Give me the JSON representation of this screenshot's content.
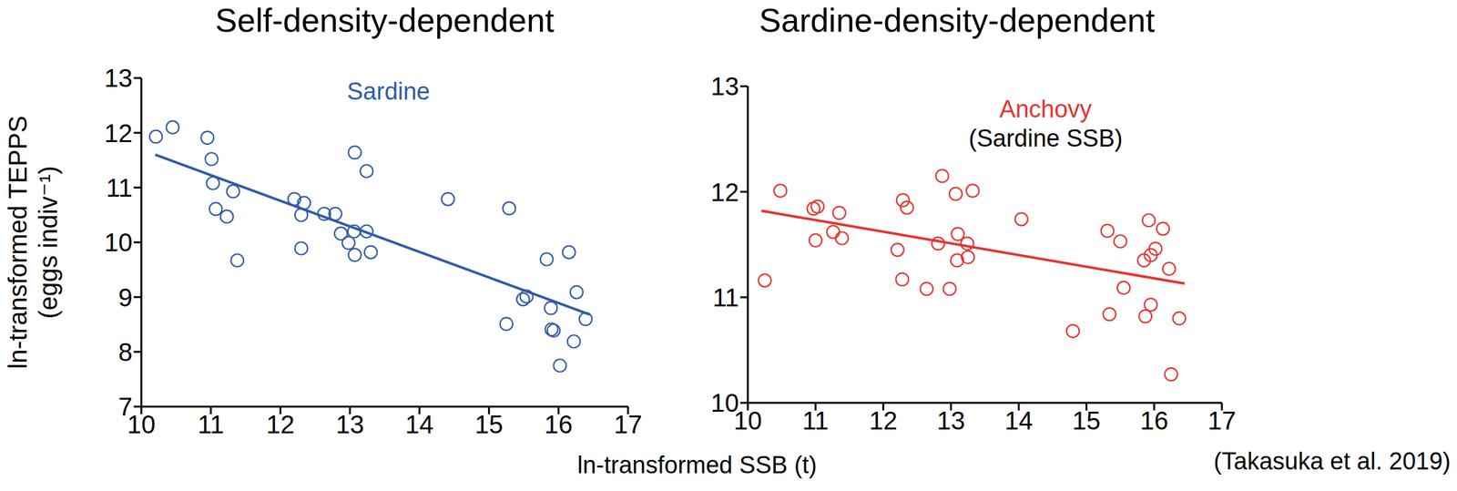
{
  "xlabel": "ln-transformed SSB (t)",
  "ylabel": "ln-transformed TEPPS (eggs indiv⁻¹)",
  "source": "(Takasuka et al. 2019)",
  "chart_data": [
    {
      "type": "scatter",
      "title": "Self-density-dependent",
      "xlim": [
        10,
        17
      ],
      "xticks": [
        10,
        11,
        12,
        13,
        14,
        15,
        16,
        17
      ],
      "ylim": [
        7,
        13
      ],
      "yticks": [
        7,
        8,
        9,
        10,
        11,
        12,
        13
      ],
      "grid": false,
      "series": [
        {
          "name": "Sardine",
          "color": "#2f5ba8",
          "marker": "open_circle",
          "x": [
            10.21,
            10.45,
            10.95,
            11.01,
            11.03,
            11.07,
            11.32,
            11.23,
            11.38,
            12.2,
            12.34,
            12.3,
            12.3,
            12.63,
            12.79,
            12.87,
            12.98,
            13.07,
            13.06,
            13.07,
            13.24,
            13.24,
            13.3,
            14.41,
            15.29,
            15.25,
            15.49,
            15.54,
            15.83,
            15.89,
            15.9,
            15.93,
            16.15,
            16.02,
            16.26,
            16.22,
            16.39
          ],
          "values": [
            11.93,
            12.1,
            11.91,
            11.52,
            11.08,
            10.61,
            10.93,
            10.47,
            9.67,
            10.79,
            10.72,
            10.5,
            9.89,
            10.52,
            10.52,
            10.16,
            9.99,
            11.64,
            10.2,
            9.77,
            11.3,
            10.2,
            9.82,
            10.79,
            10.62,
            8.51,
            8.96,
            9.01,
            9.69,
            8.8,
            8.41,
            8.39,
            9.82,
            7.75,
            9.09,
            8.19,
            8.6
          ]
        },
        {
          "type": "line",
          "color": "#2f5ba8",
          "x": [
            10.2,
            16.45
          ],
          "values": [
            11.6,
            8.68
          ]
        }
      ]
    },
    {
      "type": "scatter",
      "title": "Sardine-density-dependent",
      "annotation": "(Sardine SSB)",
      "xlim": [
        10,
        17
      ],
      "xticks": [
        10,
        11,
        12,
        13,
        14,
        15,
        16,
        17
      ],
      "ylim": [
        10,
        13
      ],
      "yticks": [
        10,
        11,
        12,
        13
      ],
      "grid": false,
      "series": [
        {
          "name": "Anchovy",
          "color": "#e8332f",
          "marker": "open_circle",
          "x": [
            10.25,
            10.48,
            10.97,
            11.03,
            11.0,
            11.26,
            11.35,
            11.39,
            12.21,
            12.29,
            12.35,
            12.28,
            12.64,
            12.81,
            12.87,
            12.98,
            13.07,
            13.09,
            13.1,
            13.24,
            13.25,
            13.32,
            14.04,
            14.8,
            15.31,
            15.34,
            15.5,
            15.55,
            15.92,
            15.95,
            16.02,
            15.85,
            15.87,
            15.95,
            16.13,
            16.22,
            16.37,
            16.25
          ],
          "values": [
            11.16,
            12.01,
            11.84,
            11.86,
            11.54,
            11.62,
            11.8,
            11.56,
            11.45,
            11.92,
            11.85,
            11.17,
            11.08,
            11.51,
            12.15,
            11.08,
            11.98,
            11.35,
            11.6,
            11.51,
            11.38,
            12.01,
            11.74,
            10.68,
            11.63,
            10.84,
            11.53,
            11.09,
            11.73,
            11.4,
            11.46,
            11.35,
            10.82,
            10.93,
            11.65,
            11.27,
            10.8,
            10.27
          ]
        },
        {
          "type": "line",
          "color": "#e8332f",
          "x": [
            10.2,
            16.45
          ],
          "values": [
            11.82,
            11.13
          ]
        }
      ]
    }
  ]
}
